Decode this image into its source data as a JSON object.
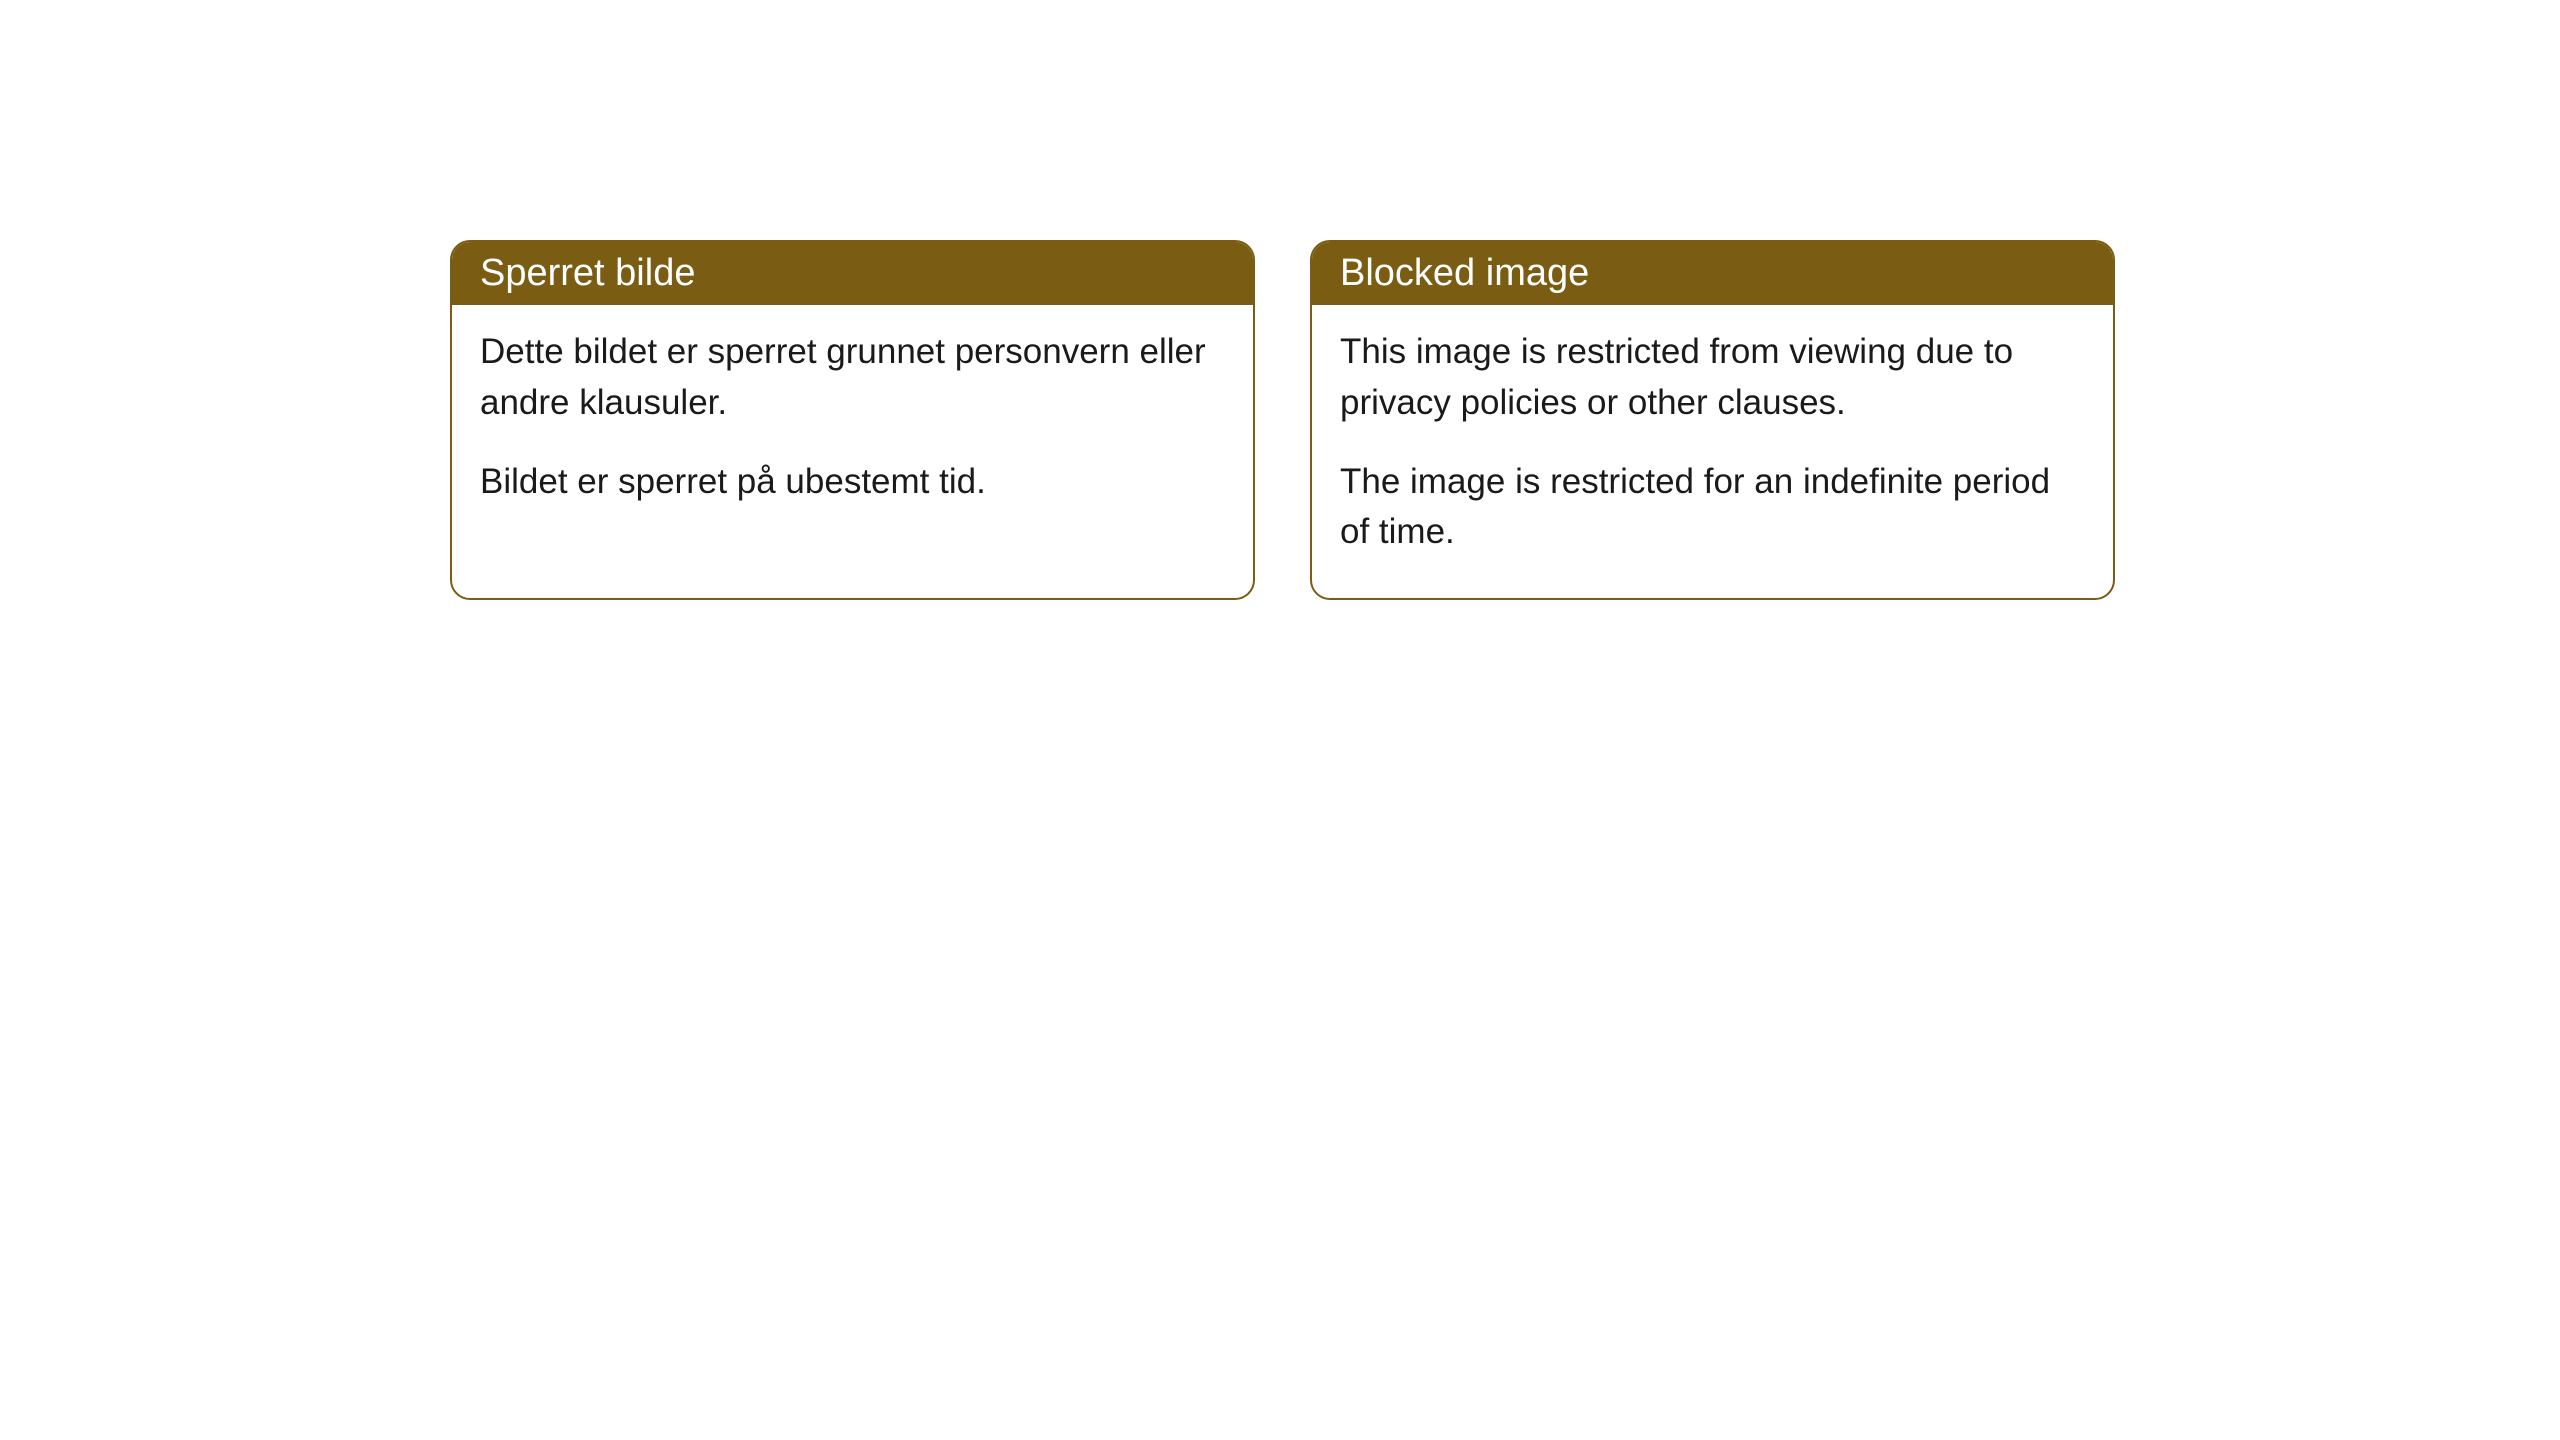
{
  "cards": [
    {
      "title": "Sperret bilde",
      "paragraph1": "Dette bildet er sperret grunnet personvern eller andre klausuler.",
      "paragraph2": "Bildet er sperret på ubestemt tid."
    },
    {
      "title": "Blocked image",
      "paragraph1": "This image is restricted from viewing due to privacy policies or other clauses.",
      "paragraph2": "The image is restricted for an indefinite period of time."
    }
  ],
  "style": {
    "header_background": "#7a5c12",
    "header_text_color": "#ffffff",
    "border_color": "#7a5c12",
    "body_background": "#ffffff",
    "body_text_color": "#1a1a1a",
    "border_radius": 20,
    "title_fontsize": 38,
    "body_fontsize": 35
  }
}
